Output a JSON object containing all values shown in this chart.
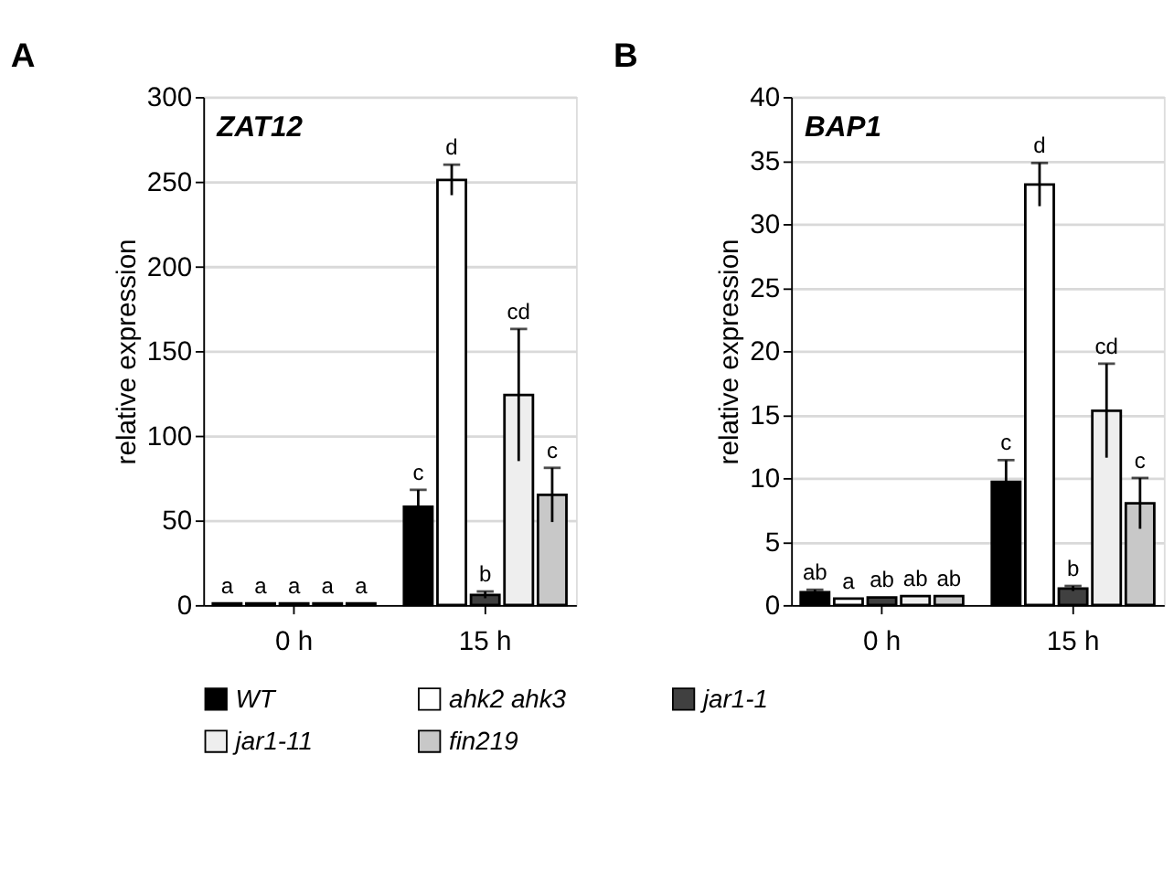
{
  "chart_data": [
    {
      "type": "bar",
      "title": "A",
      "subtitle": "ZAT12",
      "ylabel": "relative expression",
      "categories": [
        "0 h",
        "15 h"
      ],
      "ylim": [
        0,
        300
      ],
      "yticks": [
        0,
        50,
        100,
        150,
        200,
        250,
        300
      ],
      "grid": "y",
      "legend": "bottom",
      "series": [
        {
          "name": "WT",
          "color": "#000000",
          "values": [
            1,
            58
          ],
          "errors": [
            null,
            10
          ],
          "value_labels": [
            "a",
            "c"
          ]
        },
        {
          "name": "ahk2 ahk3",
          "color": "#ffffff",
          "values": [
            1,
            251
          ],
          "errors": [
            null,
            9
          ],
          "value_labels": [
            "a",
            "d"
          ]
        },
        {
          "name": "jar1-1",
          "color": "#404040",
          "values": [
            1,
            6
          ],
          "errors": [
            null,
            2
          ],
          "value_labels": [
            "a",
            "b"
          ]
        },
        {
          "name": "jar1-11",
          "color": "#eeeeee",
          "values": [
            1,
            124
          ],
          "errors": [
            null,
            39
          ],
          "value_labels": [
            "a",
            "cd"
          ]
        },
        {
          "name": "fin219",
          "color": "#c8c8c8",
          "values": [
            1,
            65
          ],
          "errors": [
            null,
            16
          ],
          "value_labels": [
            "a",
            "c"
          ]
        }
      ]
    },
    {
      "type": "bar",
      "title": "B",
      "subtitle": "BAP1",
      "ylabel": "relative expression",
      "categories": [
        "0 h",
        "15 h"
      ],
      "ylim": [
        0,
        40
      ],
      "yticks": [
        0,
        5,
        10,
        15,
        20,
        25,
        30,
        35,
        40
      ],
      "grid": "y",
      "legend": "bottom",
      "series": [
        {
          "name": "WT",
          "color": "#000000",
          "values": [
            1.0,
            9.7
          ],
          "errors": [
            0.2,
            1.7
          ],
          "value_labels": [
            "ab",
            "c"
          ]
        },
        {
          "name": "ahk2 ahk3",
          "color": "#ffffff",
          "values": [
            0.5,
            33.1
          ],
          "errors": [
            null,
            1.7
          ],
          "value_labels": [
            "a",
            "d"
          ]
        },
        {
          "name": "jar1-1",
          "color": "#404040",
          "values": [
            0.6,
            1.3
          ],
          "errors": [
            null,
            0.2
          ],
          "value_labels": [
            "ab",
            "b"
          ]
        },
        {
          "name": "jar1-11",
          "color": "#eeeeee",
          "values": [
            0.7,
            15.3
          ],
          "errors": [
            null,
            3.7
          ],
          "value_labels": [
            "ab",
            "cd"
          ]
        },
        {
          "name": "fin219",
          "color": "#c8c8c8",
          "values": [
            0.7,
            8.0
          ],
          "errors": [
            null,
            2.0
          ],
          "value_labels": [
            "ab",
            "c"
          ]
        }
      ]
    }
  ]
}
